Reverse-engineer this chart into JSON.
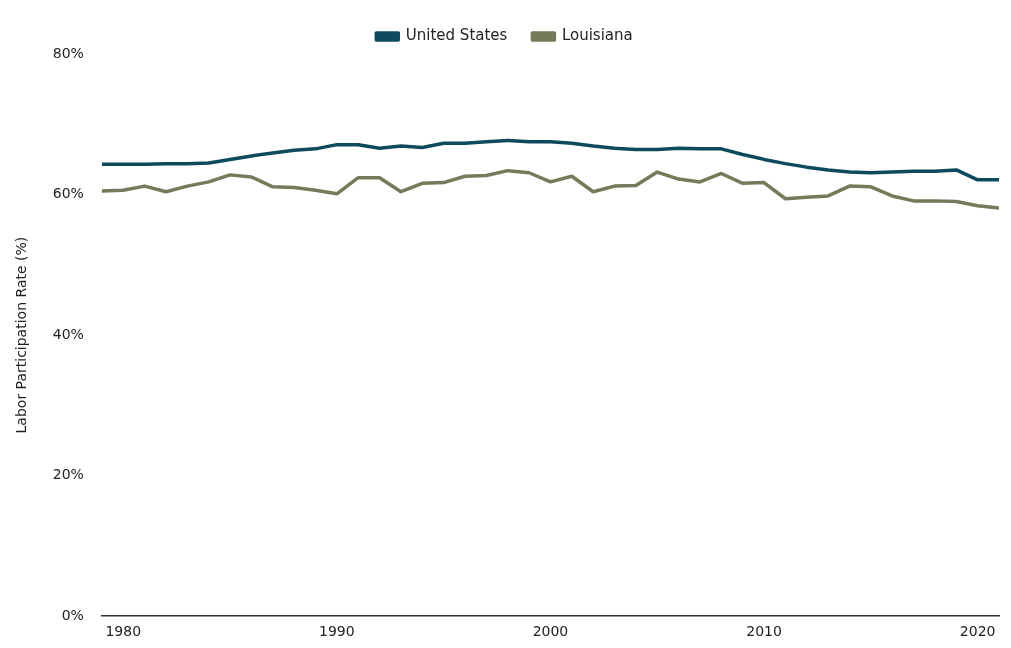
{
  "chart_data": {
    "type": "line",
    "ylabel": "Labor Participation Rate (%)",
    "legend": "top",
    "grid": false,
    "marker": "none",
    "line_style": "solid",
    "x": [
      1979,
      1980,
      1981,
      1982,
      1983,
      1984,
      1985,
      1986,
      1987,
      1988,
      1989,
      1990,
      1991,
      1992,
      1993,
      1994,
      1995,
      1996,
      1997,
      1998,
      1999,
      2000,
      2001,
      2002,
      2003,
      2004,
      2005,
      2006,
      2007,
      2008,
      2009,
      2010,
      2011,
      2012,
      2013,
      2014,
      2015,
      2016,
      2017,
      2018,
      2019,
      2020,
      2021
    ],
    "xlim": [
      1979,
      2021
    ],
    "xticks": [
      1980,
      1990,
      2000,
      2010,
      2020
    ],
    "ylim": [
      0,
      80
    ],
    "yticks": [
      {
        "value": 0,
        "label": "0%"
      },
      {
        "value": 20,
        "label": "20%"
      },
      {
        "value": 40,
        "label": "40%"
      },
      {
        "value": 60,
        "label": "60%"
      },
      {
        "value": 80,
        "label": "80%"
      }
    ],
    "series": [
      {
        "name": "United States",
        "color": "#0d4a5e",
        "values": [
          64.3,
          64.3,
          64.3,
          64.4,
          64.4,
          64.5,
          65.0,
          65.5,
          65.9,
          66.3,
          66.5,
          67.1,
          67.1,
          66.6,
          66.9,
          66.7,
          67.3,
          67.3,
          67.5,
          67.7,
          67.5,
          67.5,
          67.3,
          66.9,
          66.6,
          66.4,
          66.4,
          66.6,
          66.5,
          66.5,
          65.7,
          65.0,
          64.4,
          63.9,
          63.5,
          63.2,
          63.1,
          63.2,
          63.3,
          63.3,
          63.5,
          62.1,
          62.1
        ]
      },
      {
        "name": "Louisiana",
        "color": "#767a5a",
        "values": [
          60.5,
          60.6,
          61.2,
          60.4,
          61.2,
          61.8,
          62.8,
          62.5,
          61.1,
          61.0,
          60.6,
          60.1,
          62.4,
          62.4,
          60.4,
          61.6,
          61.7,
          62.6,
          62.7,
          63.4,
          63.1,
          61.8,
          62.6,
          60.4,
          61.2,
          61.3,
          63.2,
          62.2,
          61.8,
          63.0,
          61.6,
          61.7,
          59.4,
          59.6,
          59.8,
          61.2,
          61.1,
          59.8,
          59.1,
          59.1,
          59.0,
          58.4,
          58.1
        ]
      }
    ]
  }
}
